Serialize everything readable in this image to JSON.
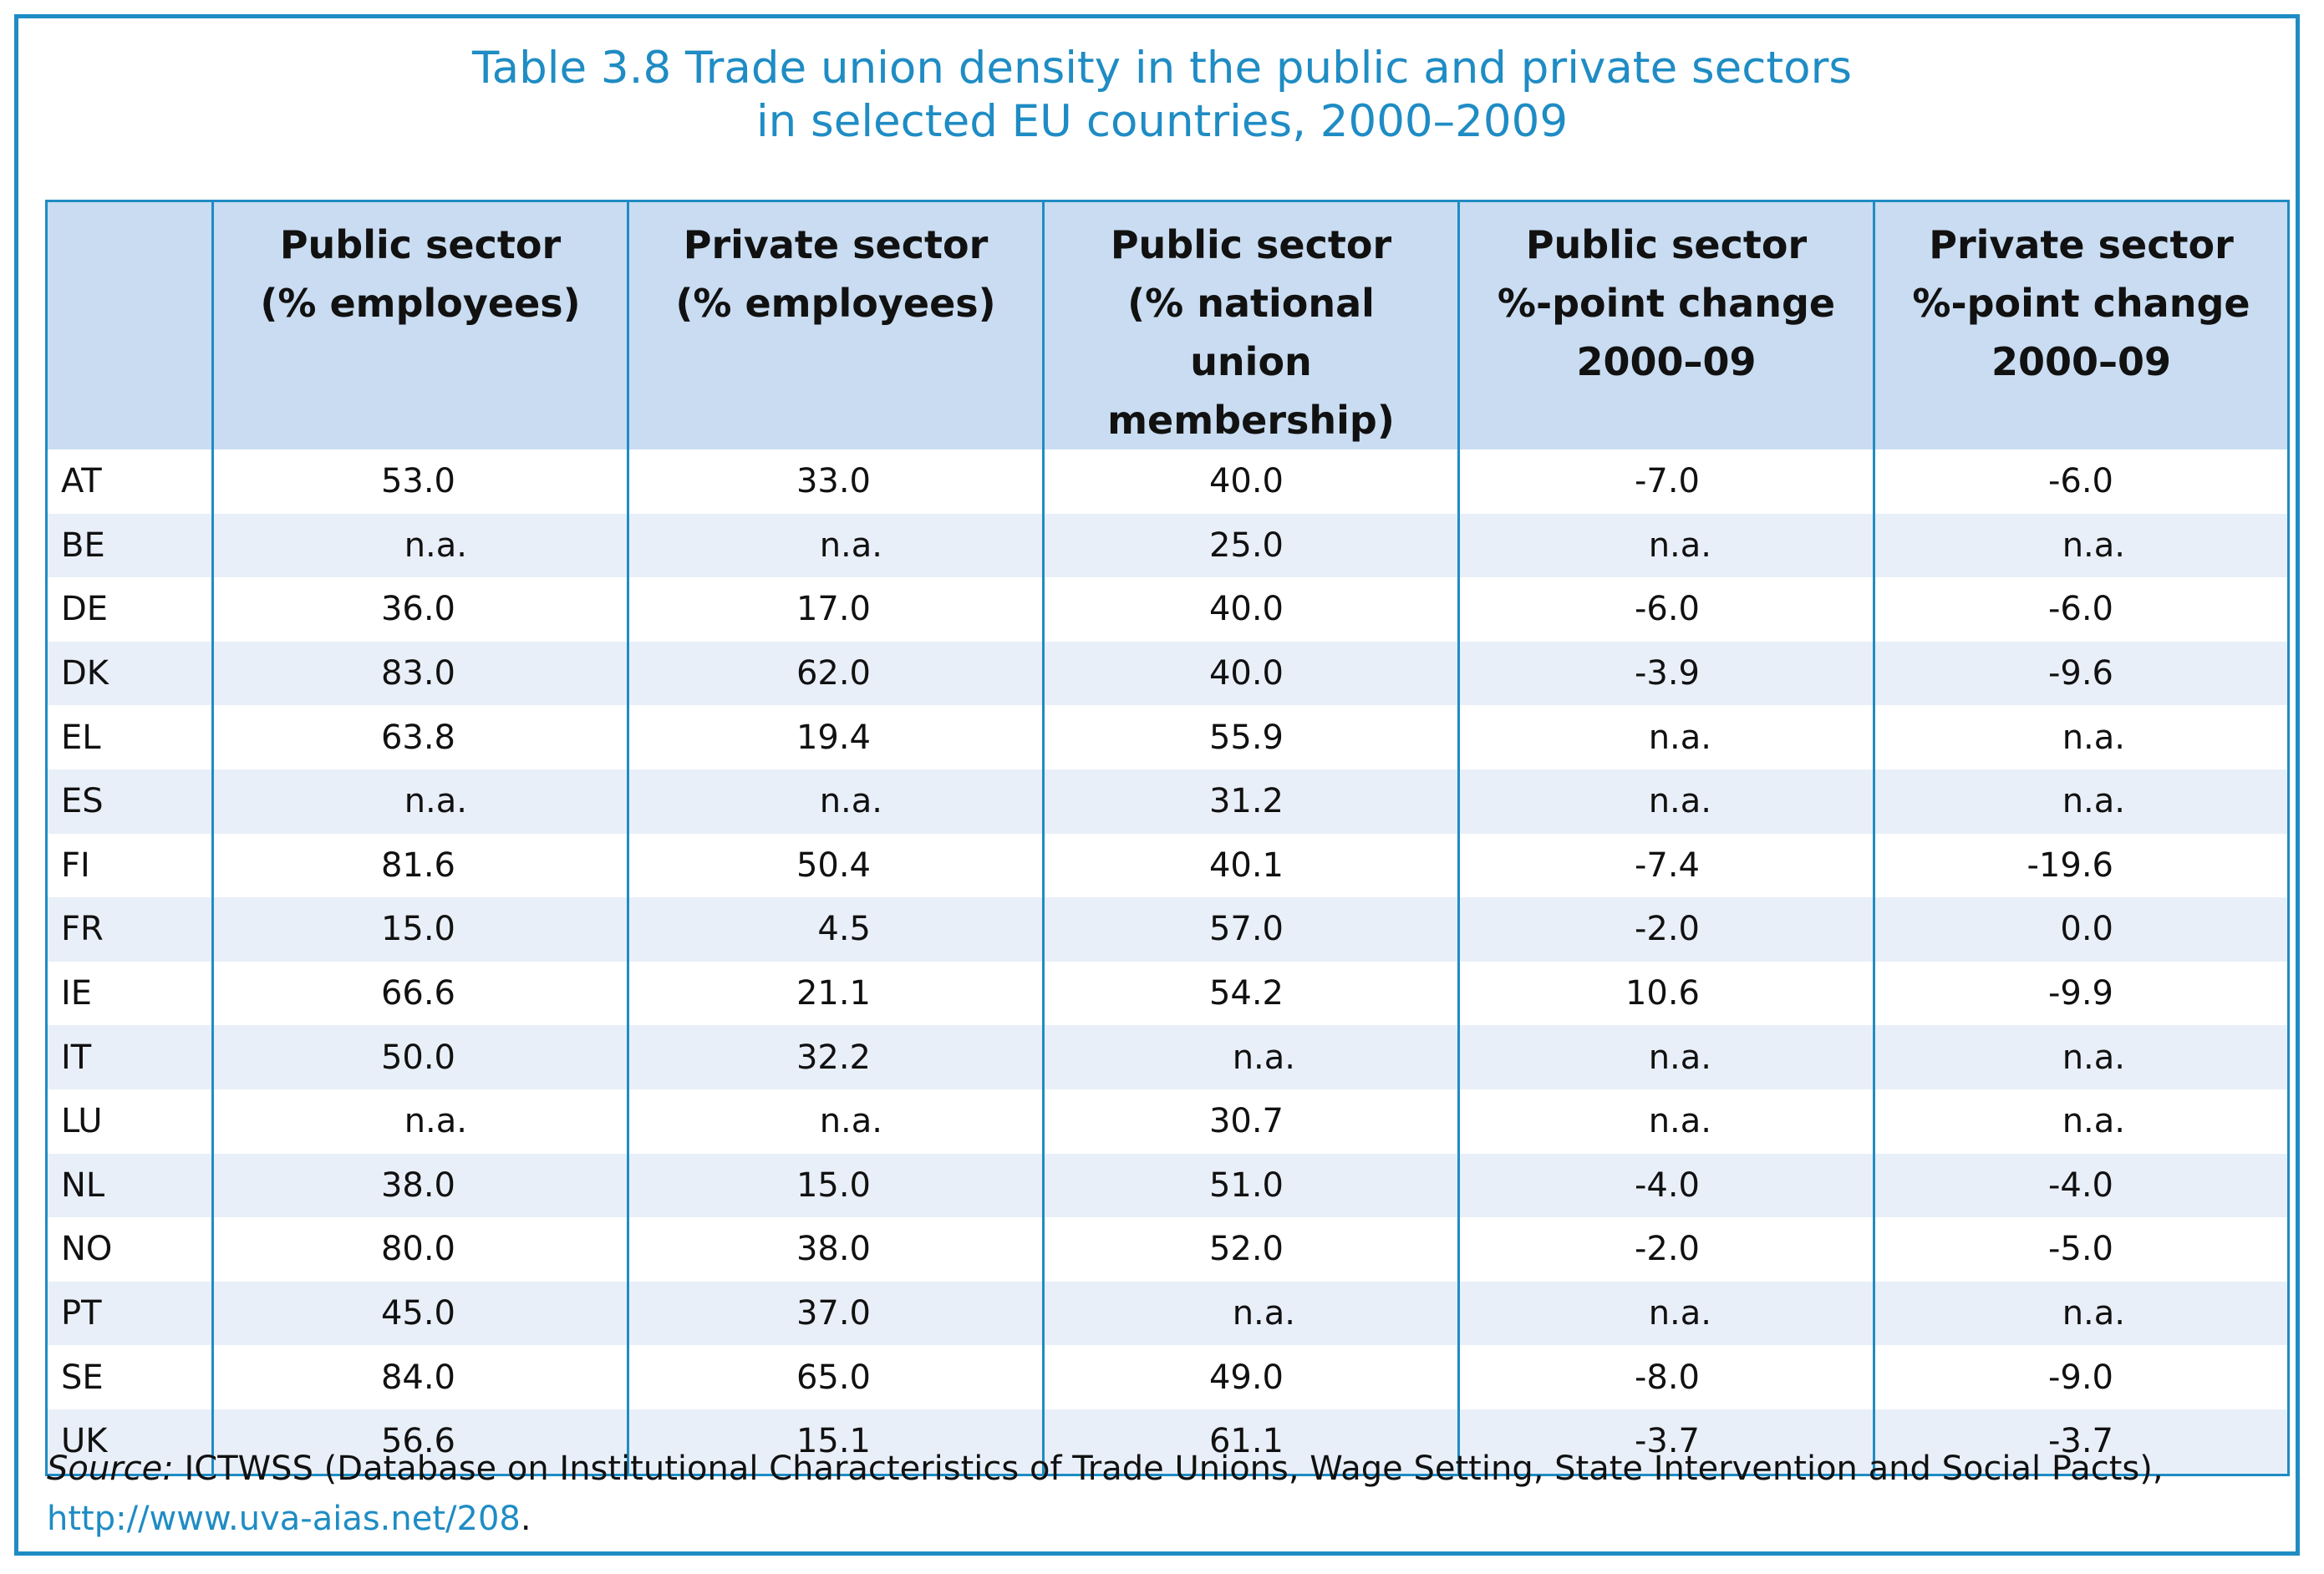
{
  "title": {
    "line1": "Table 3.8 Trade union density in the public and private sectors",
    "line2": "in selected EU countries, 2000–2009"
  },
  "headers": [
    {
      "line1": "",
      "line2": "",
      "line3": ""
    },
    {
      "line1": "Public sector",
      "line2": "(% employees)",
      "line3": ""
    },
    {
      "line1": "Private sector",
      "line2": "(% employees)",
      "line3": ""
    },
    {
      "line1": "Public sector",
      "line2": "(% national",
      "line3": "union membership)"
    },
    {
      "line1": "Public sector",
      "line2": "%-point change",
      "line3": "2000–09"
    },
    {
      "line1": "Private sector",
      "line2": "%-point change",
      "line3": "2000–09"
    }
  ],
  "rows": [
    [
      "AT",
      "53.0",
      "33.0",
      "40.0",
      "-7.0",
      "-6.0"
    ],
    [
      "BE",
      "n.a.",
      "n.a.",
      "25.0",
      "n.a.",
      "n.a."
    ],
    [
      "DE",
      "36.0",
      "17.0",
      "40.0",
      "-6.0",
      "-6.0"
    ],
    [
      "DK",
      "83.0",
      "62.0",
      "40.0",
      "-3.9",
      "-9.6"
    ],
    [
      "EL",
      "63.8",
      "19.4",
      "55.9",
      "n.a.",
      "n.a."
    ],
    [
      "ES",
      "n.a.",
      "n.a.",
      "31.2",
      "n.a.",
      "n.a."
    ],
    [
      "FI",
      "81.6",
      "50.4",
      "40.1",
      "-7.4",
      "-19.6"
    ],
    [
      "FR",
      "15.0",
      "4.5",
      "57.0",
      "-2.0",
      "0.0"
    ],
    [
      "IE",
      "66.6",
      "21.1",
      "54.2",
      "10.6",
      "-9.9"
    ],
    [
      "IT",
      "50.0",
      "32.2",
      "n.a.",
      "n.a.",
      "n.a."
    ],
    [
      "LU",
      "n.a.",
      "n.a.",
      "30.7",
      "n.a.",
      "n.a."
    ],
    [
      "NL",
      "38.0",
      "15.0",
      "51.0",
      "-4.0",
      "-4.0"
    ],
    [
      "NO",
      "80.0",
      "38.0",
      "52.0",
      "-2.0",
      "-5.0"
    ],
    [
      "PT",
      "45.0",
      "37.0",
      "n.a.",
      "n.a.",
      "n.a."
    ],
    [
      "SE",
      "84.0",
      "65.0",
      "49.0",
      "-8.0",
      "-9.0"
    ],
    [
      "UK",
      "56.6",
      "15.1",
      "61.1",
      "-3.7",
      "-3.7"
    ]
  ],
  "source": {
    "label": "Source:",
    "text": " ICTWSS (Database on Institutional Characteristics of Trade Unions, Wage Setting, State Intervention and Social Pacts),",
    "link": "http://www.uva-aias.net/208",
    "end": "."
  },
  "colors": {
    "accent": "#1f8cc4",
    "header_bg": "#c9dcf1",
    "stripe_bg": "#e9eff8"
  }
}
